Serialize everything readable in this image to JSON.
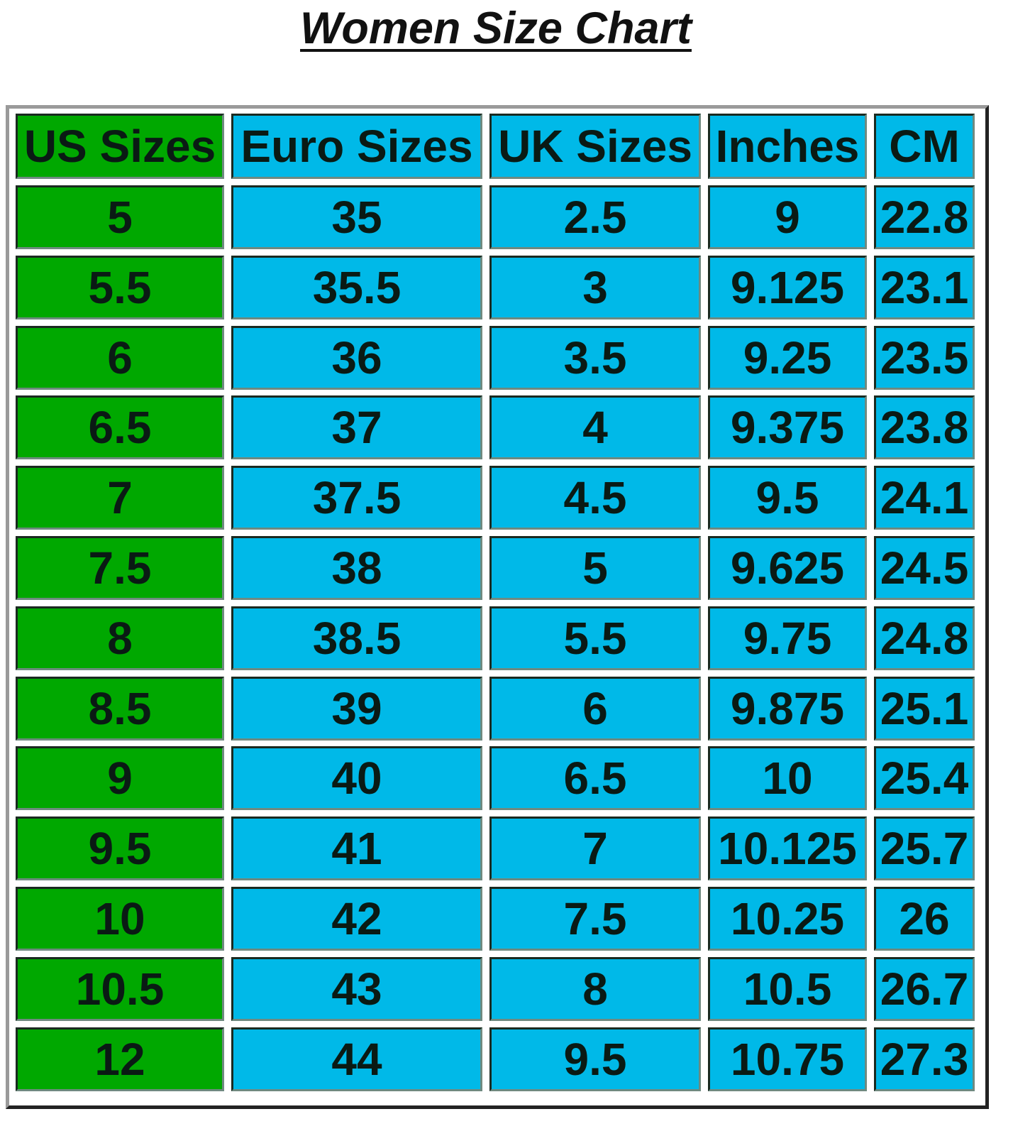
{
  "title": "Women Size Chart",
  "colors": {
    "us_column": "#00a800",
    "other_columns": "#00b9e8"
  },
  "table": {
    "headers": [
      "US Sizes",
      "Euro Sizes",
      "UK Sizes",
      "Inches",
      "CM"
    ],
    "rows": [
      [
        "5",
        "35",
        "2.5",
        "9",
        "22.8"
      ],
      [
        "5.5",
        "35.5",
        "3",
        "9.125",
        "23.1"
      ],
      [
        "6",
        "36",
        "3.5",
        "9.25",
        "23.5"
      ],
      [
        "6.5",
        "37",
        "4",
        "9.375",
        "23.8"
      ],
      [
        "7",
        "37.5",
        "4.5",
        "9.5",
        "24.1"
      ],
      [
        "7.5",
        "38",
        "5",
        "9.625",
        "24.5"
      ],
      [
        "8",
        "38.5",
        "5.5",
        "9.75",
        "24.8"
      ],
      [
        "8.5",
        "39",
        "6",
        "9.875",
        "25.1"
      ],
      [
        "9",
        "40",
        "6.5",
        "10",
        "25.4"
      ],
      [
        "9.5",
        "41",
        "7",
        "10.125",
        "25.7"
      ],
      [
        "10",
        "42",
        "7.5",
        "10.25",
        "26"
      ],
      [
        "10.5",
        "43",
        "8",
        "10.5",
        "26.7"
      ],
      [
        "12",
        "44",
        "9.5",
        "10.75",
        "27.3"
      ]
    ]
  }
}
